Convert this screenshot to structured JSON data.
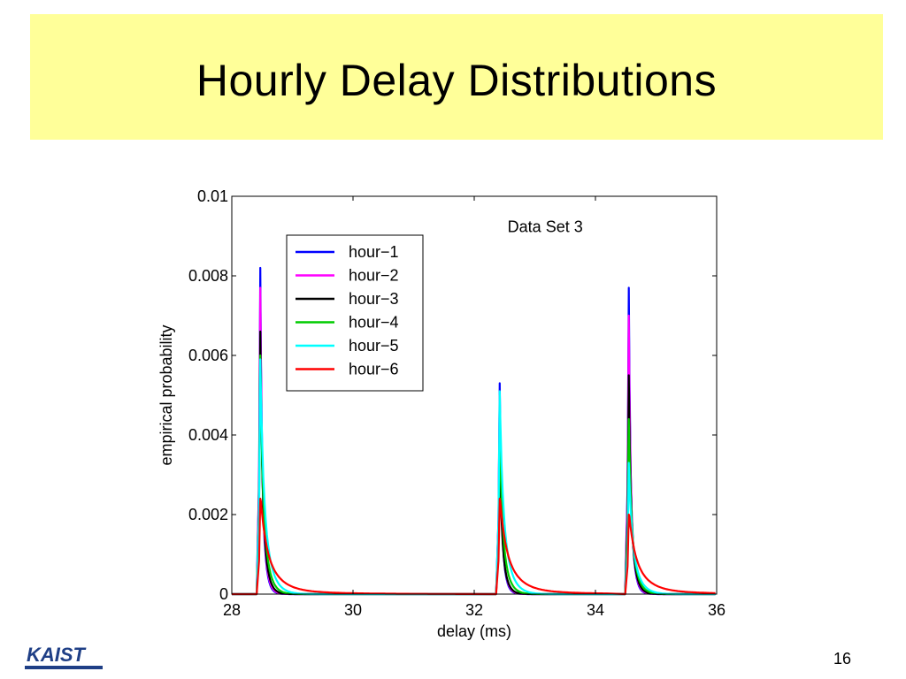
{
  "slide": {
    "title": "Hourly Delay Distributions",
    "page_number": "16",
    "logo_text": "KAIST"
  },
  "colors": {
    "title_background": "#ffff99",
    "logo": "#1f3f86"
  },
  "chart_data": {
    "type": "line",
    "annotation": "Data Set 3",
    "xlabel": "delay (ms)",
    "ylabel": "empirical probability",
    "xlim": [
      28,
      36
    ],
    "ylim": [
      0,
      0.01
    ],
    "x_ticks": [
      "28",
      "30",
      "32",
      "34",
      "36"
    ],
    "y_ticks": [
      "0",
      "0.002",
      "0.004",
      "0.006",
      "0.008",
      "0.01"
    ],
    "grid": false,
    "legend_placement": "top-left",
    "peak_delays_ms": [
      28.47,
      32.42,
      34.55
    ],
    "series": [
      {
        "name": "hour−1",
        "color": "#0000ff",
        "peaks": [
          0.0082,
          0.0053,
          0.0077
        ]
      },
      {
        "name": "hour−2",
        "color": "#ff00ff",
        "peaks": [
          0.0077,
          0.005,
          0.007
        ]
      },
      {
        "name": "hour−3",
        "color": "#000000",
        "peaks": [
          0.0066,
          0.0039,
          0.0055
        ]
      },
      {
        "name": "hour−4",
        "color": "#00cc00",
        "peaks": [
          0.006,
          0.0043,
          0.0044
        ]
      },
      {
        "name": "hour−5",
        "color": "#00ffff",
        "peaks": [
          0.0059,
          0.0051,
          0.0033
        ]
      },
      {
        "name": "hour−6",
        "color": "#ff0000",
        "peaks": [
          0.0024,
          0.0024,
          0.002
        ]
      }
    ]
  }
}
